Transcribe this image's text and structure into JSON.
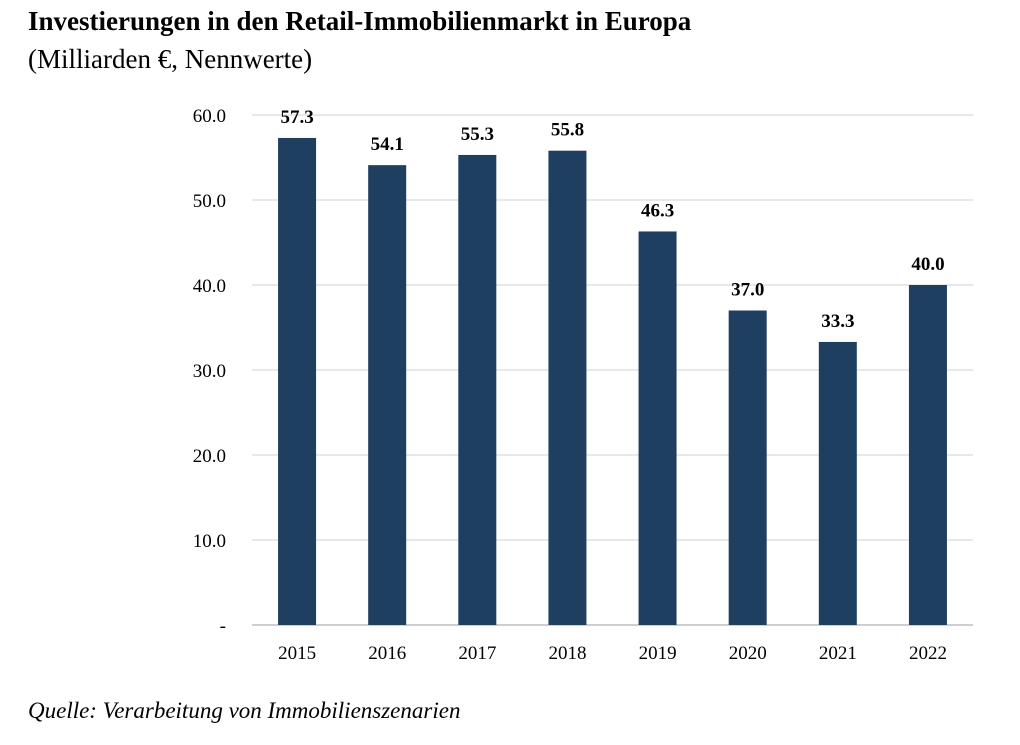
{
  "header": {
    "title": "Investierungen in den Retail-Immobilienmarkt in Europa",
    "subtitle": "(Milliarden €, Nennwerte)"
  },
  "footer": {
    "source": "Quelle: Verarbeitung von Immobilienszenarien"
  },
  "colors": {
    "bar": "#1f3f61",
    "grid": "#d9d9d9",
    "axis": "#bfbfbf"
  },
  "chart_data": {
    "type": "bar",
    "title": "Investierungen in den Retail-Immobilienmarkt in Europa",
    "subtitle": "(Milliarden €, Nennwerte)",
    "categories": [
      "2015",
      "2016",
      "2017",
      "2018",
      "2019",
      "2020",
      "2021",
      "2022"
    ],
    "values": [
      57.3,
      54.1,
      55.3,
      55.8,
      46.3,
      37.0,
      33.3,
      40.0
    ],
    "data_labels": [
      "57.3",
      "54.1",
      "55.3",
      "55.8",
      "46.3",
      "37.0",
      "33.3",
      "40.0"
    ],
    "ylim": [
      0,
      60
    ],
    "yticks": [
      0,
      10,
      20,
      30,
      40,
      50,
      60
    ],
    "ytick_labels": [
      "-",
      "10.0",
      "20.0",
      "30.0",
      "40.0",
      "50.0",
      "60.0"
    ],
    "grid": true,
    "legend": "none"
  }
}
